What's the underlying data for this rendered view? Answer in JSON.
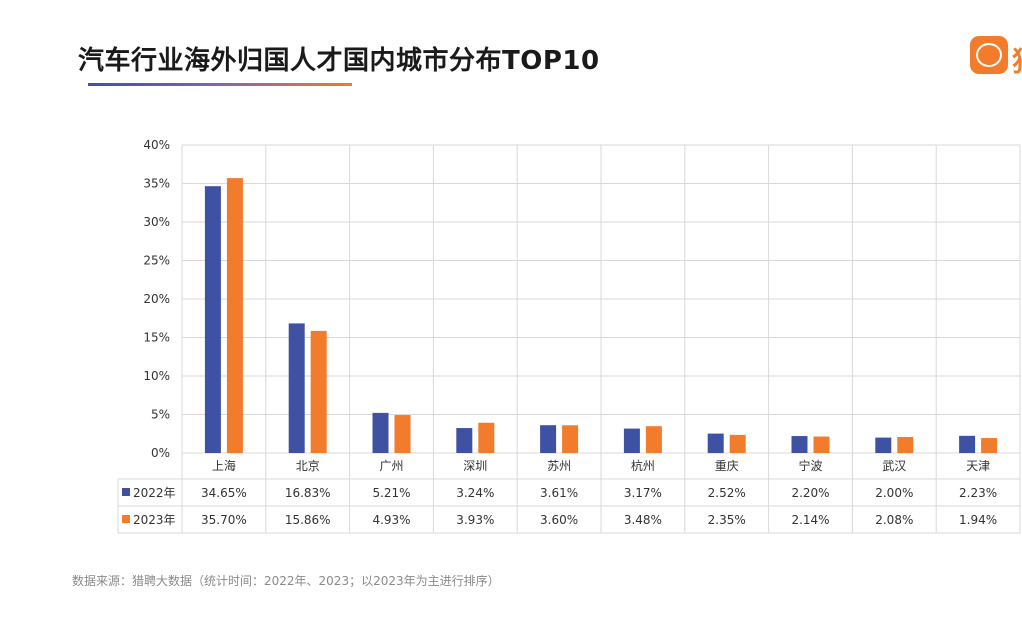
{
  "header": {
    "title": "汽车行业海外归国人才国内城市分布TOP10",
    "logo_text": "猎聘",
    "brand_char": "猎"
  },
  "footer": {
    "source": "数据来源：猎聘大数据（统计时间：2022年、2023；以2023年为主进行排序）"
  },
  "colors": {
    "series_2022": "#3f51a3",
    "series_2023": "#f37b2c",
    "grid": "#d9d9d9",
    "brand": "#f37b2c"
  },
  "chart_data": {
    "type": "bar",
    "title": "汽车行业海外归国人才国内城市分布TOP10",
    "categories": [
      "上海",
      "北京",
      "广州",
      "深圳",
      "苏州",
      "杭州",
      "重庆",
      "宁波",
      "武汉",
      "天津"
    ],
    "series": [
      {
        "name": "2022年",
        "values": [
          34.65,
          16.83,
          5.21,
          3.24,
          3.61,
          3.17,
          2.52,
          2.2,
          2.0,
          2.23
        ],
        "labels": [
          "34.65%",
          "16.83%",
          "5.21%",
          "3.24%",
          "3.61%",
          "3.17%",
          "2.52%",
          "2.20%",
          "2.00%",
          "2.23%"
        ]
      },
      {
        "name": "2023年",
        "values": [
          35.7,
          15.86,
          4.93,
          3.93,
          3.6,
          3.48,
          2.35,
          2.14,
          2.08,
          1.94
        ],
        "labels": [
          "35.70%",
          "15.86%",
          "4.93%",
          "3.93%",
          "3.60%",
          "3.48%",
          "2.35%",
          "2.14%",
          "2.08%",
          "1.94%"
        ]
      }
    ],
    "yticks": [
      "0%",
      "5%",
      "10%",
      "15%",
      "20%",
      "25%",
      "30%",
      "35%",
      "40%"
    ],
    "ylim": [
      0,
      40
    ],
    "grid": true,
    "legend": "data-table"
  }
}
